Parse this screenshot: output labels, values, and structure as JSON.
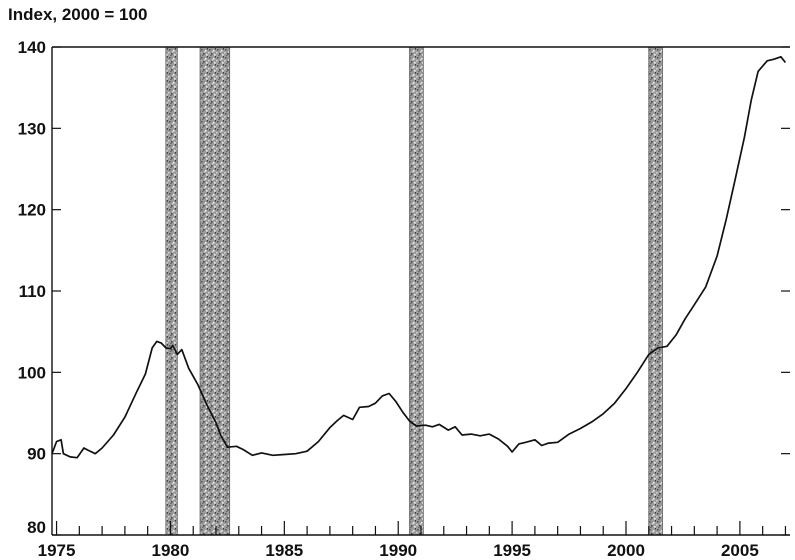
{
  "chart_data": {
    "type": "line",
    "title": "Index, 2000 = 100",
    "xlabel": "",
    "ylabel": "",
    "xlim": [
      1974.8,
      2007.2
    ],
    "ylim": [
      80,
      140
    ],
    "grid": false,
    "colors": {
      "line": "#111111",
      "axis": "#111111",
      "recession": "#9a9a9a"
    },
    "x_ticks": [
      1975,
      1980,
      1985,
      1990,
      1995,
      2000,
      2005
    ],
    "y_ticks": [
      80,
      90,
      100,
      110,
      120,
      130,
      140
    ],
    "recessions": [
      {
        "start": 1979.8,
        "end": 1980.3
      },
      {
        "start": 1981.3,
        "end": 1982.6
      },
      {
        "start": 1990.5,
        "end": 1991.1
      },
      {
        "start": 2001.0,
        "end": 2001.6
      }
    ],
    "series": [
      {
        "x": [
          1974.8,
          1975.0,
          1975.2,
          1975.3,
          1975.6,
          1975.9,
          1976.2,
          1976.4,
          1976.7,
          1977.0,
          1977.5,
          1978.0,
          1978.5,
          1978.9,
          1979.2,
          1979.4,
          1979.6,
          1979.8,
          1980.0,
          1980.1,
          1980.3,
          1980.5,
          1980.8,
          1981.2,
          1981.6,
          1982.0,
          1982.2,
          1982.5,
          1982.9,
          1983.2,
          1983.6,
          1984.0,
          1984.5,
          1985.0,
          1985.5,
          1986.0,
          1986.5,
          1987.0,
          1987.3,
          1987.6,
          1988.0,
          1988.3,
          1988.7,
          1989.0,
          1989.3,
          1989.6,
          1989.9,
          1990.2,
          1990.5,
          1990.8,
          1991.2,
          1991.5,
          1991.8,
          1992.2,
          1992.5,
          1992.8,
          1993.2,
          1993.6,
          1994.0,
          1994.4,
          1994.8,
          1995.0,
          1995.3,
          1995.6,
          1996.0,
          1996.3,
          1996.6,
          1997.0,
          1997.5,
          1998.0,
          1998.5,
          1999.0,
          1999.5,
          2000.0,
          2000.5,
          2001.0,
          2001.4,
          2001.8,
          2002.2,
          2002.6,
          2003.0,
          2003.5,
          2004.0,
          2004.4,
          2004.8,
          2005.2,
          2005.5,
          2005.8,
          2006.2,
          2006.5,
          2006.8,
          2007.0
        ],
        "values": [
          90.0,
          91.5,
          91.7,
          90.0,
          89.6,
          89.5,
          90.7,
          90.4,
          90.0,
          90.7,
          92.3,
          94.5,
          97.5,
          99.8,
          103.0,
          103.8,
          103.6,
          103.0,
          102.9,
          103.3,
          102.2,
          102.8,
          100.5,
          98.5,
          96.0,
          93.8,
          92.3,
          90.8,
          90.9,
          90.5,
          89.8,
          90.1,
          89.8,
          89.9,
          90.0,
          90.3,
          91.5,
          93.2,
          94.0,
          94.7,
          94.2,
          95.7,
          95.8,
          96.2,
          97.1,
          97.4,
          96.4,
          95.1,
          94.0,
          93.4,
          93.5,
          93.3,
          93.6,
          92.9,
          93.3,
          92.3,
          92.4,
          92.2,
          92.4,
          91.8,
          90.9,
          90.2,
          91.2,
          91.4,
          91.7,
          91.0,
          91.3,
          91.4,
          92.4,
          93.1,
          93.9,
          94.9,
          96.2,
          98.0,
          100.0,
          102.2,
          103.0,
          103.2,
          104.6,
          106.6,
          108.3,
          110.5,
          114.3,
          118.8,
          123.8,
          128.9,
          133.5,
          137.0,
          138.3,
          138.5,
          138.8,
          138.1
        ]
      }
    ]
  }
}
